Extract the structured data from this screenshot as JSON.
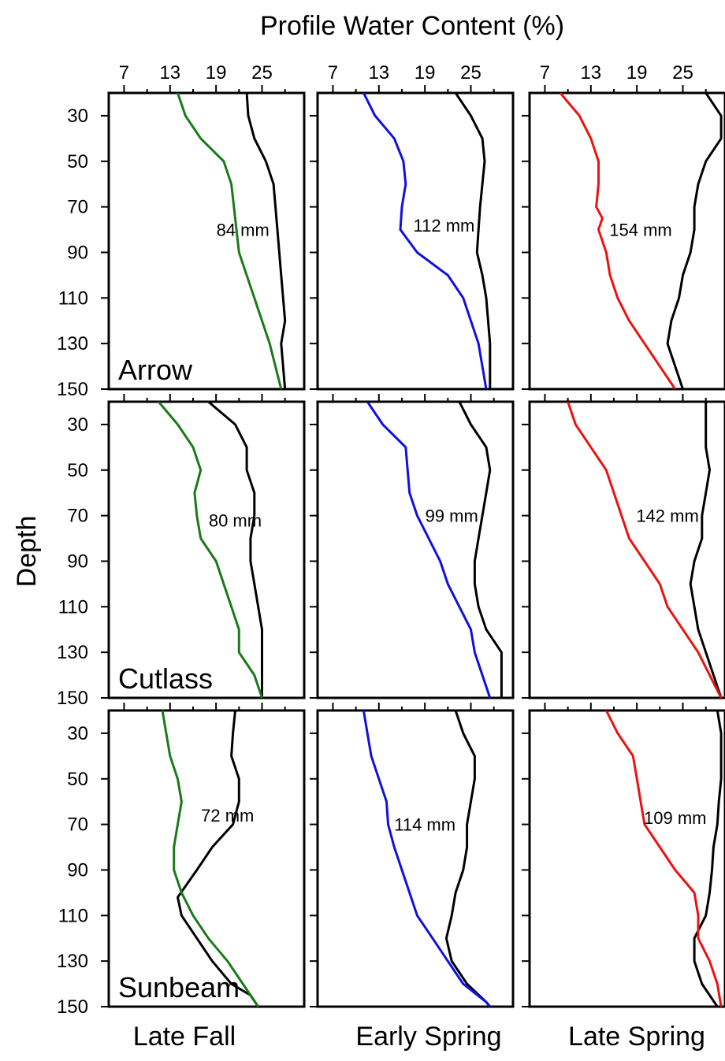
{
  "figure": {
    "title": "Profile Water Content (%)",
    "ylabel": "Depth",
    "x_ticks": [
      "7",
      "13",
      "19",
      "25"
    ],
    "y_ticks": [
      "30",
      "50",
      "70",
      "90",
      "110",
      "130",
      "150"
    ],
    "columns": [
      "Late Fall",
      "Early Spring",
      "Late Spring"
    ],
    "rows": [
      "Arrow",
      "Cutlass",
      "Sunbeam"
    ]
  },
  "chart_data": {
    "type": "line",
    "title": "Profile Water Content (%)",
    "xlabel": "Profile Water Content (%)",
    "ylabel": "Depth",
    "xlim": [
      5,
      30.5
    ],
    "ylim": [
      150,
      20
    ],
    "y_inverted": true,
    "x_ticks": [
      7,
      13,
      19,
      25
    ],
    "y_ticks": [
      30,
      50,
      70,
      90,
      110,
      130,
      150
    ],
    "series_colors": {
      "Late Fall": "#1a7a1a",
      "Early Spring": "#1010e0",
      "Late Spring": "#ee1111",
      "reference": "#000000"
    },
    "panels": [
      {
        "row": "Arrow",
        "column": "Late Fall",
        "annotation": "84 mm",
        "colored": {
          "x": [
            14,
            15,
            17,
            20,
            21,
            22,
            24,
            26,
            27.5
          ],
          "y": [
            20,
            30,
            40,
            50,
            60,
            90,
            110,
            130,
            150
          ]
        },
        "black": {
          "x": [
            23,
            23.2,
            24,
            25.5,
            26.5,
            27,
            27.5,
            28,
            27.5,
            28
          ],
          "y": [
            20,
            30,
            40,
            50,
            60,
            80,
            100,
            120,
            130,
            150
          ]
        },
        "label_at": [
          22.5,
          80
        ]
      },
      {
        "row": "Arrow",
        "column": "Early Spring",
        "annotation": "112 mm",
        "colored": {
          "x": [
            11,
            12.5,
            15,
            16.2,
            16.5,
            16,
            15.8,
            18,
            22,
            24,
            26,
            27
          ],
          "y": [
            20,
            30,
            40,
            50,
            60,
            70,
            80,
            90,
            100,
            110,
            130,
            150
          ]
        },
        "black": {
          "x": [
            23,
            25,
            26.5,
            26.8,
            26.5,
            26.2,
            26,
            25.8,
            26.5,
            27,
            27.5,
            27.5
          ],
          "y": [
            20,
            30,
            40,
            50,
            60,
            70,
            80,
            90,
            100,
            110,
            130,
            150
          ]
        },
        "label_at": [
          21.5,
          78
        ]
      },
      {
        "row": "Arrow",
        "column": "Late Spring",
        "annotation": "154 mm",
        "colored": {
          "x": [
            9,
            11.5,
            13,
            14,
            14,
            13.7,
            14.5,
            14,
            15,
            15.5,
            16.5,
            18,
            20,
            22,
            24
          ],
          "y": [
            20,
            30,
            40,
            50,
            60,
            70,
            75,
            80,
            90,
            100,
            110,
            120,
            130,
            140,
            150
          ]
        },
        "black": {
          "x": [
            28,
            30,
            30,
            28,
            27,
            26.5,
            26.5,
            26,
            25,
            24.5,
            23.5,
            23,
            23.5,
            24,
            25
          ],
          "y": [
            20,
            30,
            40,
            50,
            60,
            70,
            80,
            90,
            100,
            110,
            120,
            130,
            135,
            140,
            150
          ]
        },
        "label_at": [
          19.5,
          80
        ]
      },
      {
        "row": "Cutlass",
        "column": "Late Fall",
        "annotation": "80 mm",
        "colored": {
          "x": [
            11.5,
            14,
            16,
            17,
            16.2,
            16.5,
            17,
            19,
            20,
            21,
            22,
            22,
            24,
            25
          ],
          "y": [
            20,
            30,
            40,
            50,
            60,
            70,
            80,
            90,
            100,
            110,
            120,
            130,
            140,
            150
          ]
        },
        "black": {
          "x": [
            18,
            21.5,
            23,
            23,
            24,
            24,
            23.5,
            23.5,
            24,
            25,
            25,
            25
          ],
          "y": [
            20,
            30,
            40,
            50,
            60,
            70,
            80,
            90,
            100,
            120,
            140,
            150
          ]
        },
        "label_at": [
          21.5,
          72
        ]
      },
      {
        "row": "Cutlass",
        "column": "Early Spring",
        "annotation": "99 mm",
        "colored": {
          "x": [
            11.5,
            13.5,
            16.5,
            17,
            18,
            19.5,
            21,
            22,
            23.5,
            25,
            25.5,
            26.5,
            27.5
          ],
          "y": [
            20,
            30,
            40,
            60,
            70,
            80,
            90,
            100,
            110,
            120,
            130,
            140,
            150
          ]
        },
        "black": {
          "x": [
            23.5,
            25,
            27,
            27.5,
            27,
            26.5,
            26,
            25.5,
            25.5,
            26,
            27,
            29,
            29
          ],
          "y": [
            20,
            30,
            40,
            50,
            60,
            70,
            80,
            90,
            100,
            110,
            120,
            130,
            150
          ]
        },
        "label_at": [
          22.5,
          70
        ]
      },
      {
        "row": "Cutlass",
        "column": "Late Spring",
        "annotation": "142 mm",
        "colored": {
          "x": [
            10,
            11,
            13,
            15,
            16,
            18,
            20,
            22,
            23,
            25,
            27,
            30
          ],
          "y": [
            20,
            30,
            40,
            50,
            60,
            80,
            90,
            100,
            110,
            120,
            130,
            150
          ]
        },
        "black": {
          "x": [
            28,
            28,
            28.5,
            28,
            27.5,
            27.5,
            26.5,
            26,
            26.5,
            27,
            28,
            29,
            30
          ],
          "y": [
            20,
            40,
            50,
            60,
            70,
            80,
            90,
            100,
            110,
            120,
            130,
            140,
            150
          ]
        },
        "label_at": [
          23,
          70
        ]
      },
      {
        "row": "Sunbeam",
        "column": "Late Fall",
        "annotation": "72 mm",
        "colored": {
          "x": [
            12,
            12.5,
            13,
            14,
            14.5,
            14,
            13.5,
            13.5,
            14.5,
            16,
            18,
            20.5,
            22.5,
            24.5
          ],
          "y": [
            20,
            30,
            40,
            50,
            60,
            70,
            80,
            90,
            100,
            110,
            120,
            130,
            140,
            150
          ]
        },
        "black": {
          "x": [
            21.5,
            21.2,
            21,
            22,
            22,
            21.2,
            18.5,
            16.5,
            14,
            14.5,
            16.5,
            18.5,
            21,
            23.5,
            24.5
          ],
          "y": [
            20,
            30,
            40,
            50,
            60,
            70,
            80,
            90,
            102,
            110,
            120,
            130,
            140,
            145,
            150
          ]
        },
        "label_at": [
          20.5,
          66
        ]
      },
      {
        "row": "Sunbeam",
        "column": "Early Spring",
        "annotation": "114 mm",
        "colored": {
          "x": [
            11,
            11.5,
            12,
            13,
            14,
            14.2,
            15,
            16,
            17,
            18,
            20,
            22,
            24,
            27,
            27.5
          ],
          "y": [
            20,
            30,
            40,
            50,
            60,
            70,
            80,
            90,
            100,
            110,
            120,
            130,
            140,
            148,
            150
          ]
        },
        "black": {
          "x": [
            23,
            24,
            25.5,
            25.5,
            25,
            24.5,
            24.5,
            24,
            23,
            22.5,
            21.8,
            22.5,
            24.5,
            27,
            27.5
          ],
          "y": [
            20,
            30,
            40,
            50,
            60,
            70,
            80,
            90,
            100,
            110,
            120,
            130,
            140,
            148,
            150
          ]
        },
        "label_at": [
          19,
          70
        ]
      },
      {
        "row": "Sunbeam",
        "column": "Late Spring",
        "annotation": "109 mm",
        "colored": {
          "x": [
            15,
            16.5,
            18.5,
            19,
            19.5,
            20,
            22,
            24,
            26.5,
            27,
            27,
            28.5,
            29.5,
            30
          ],
          "y": [
            20,
            30,
            40,
            50,
            60,
            70,
            80,
            90,
            100,
            110,
            120,
            130,
            140,
            150
          ]
        },
        "black": {
          "x": [
            29.5,
            30,
            30,
            30,
            29.7,
            29.5,
            29,
            28.8,
            28.5,
            28,
            26.5,
            26.5,
            27.5,
            29.5
          ],
          "y": [
            20,
            30,
            40,
            50,
            60,
            70,
            80,
            90,
            100,
            110,
            120,
            130,
            140,
            150
          ]
        },
        "label_at": [
          24,
          67
        ]
      }
    ]
  }
}
